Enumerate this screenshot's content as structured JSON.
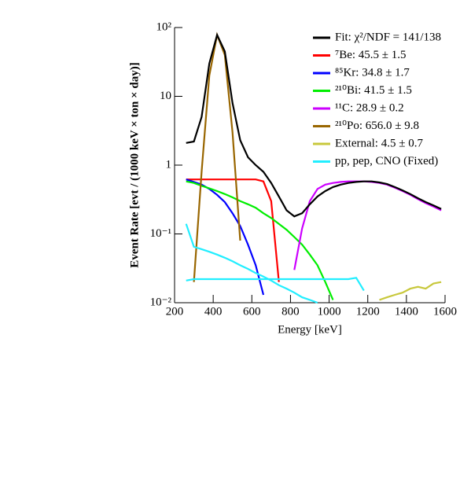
{
  "chart_data": {
    "type": "line",
    "xlabel": "Energy [keV]",
    "ylabel": "Event Rate [evt / (1000 keV × ton × day)]",
    "log_y": true,
    "legend": "top-right",
    "xlim": [
      200,
      1600
    ],
    "xticks": [
      200,
      400,
      600,
      800,
      1000,
      1200,
      1400,
      1600
    ],
    "ylim": [
      0.01,
      100
    ],
    "yticks": [
      {
        "value": 0.01,
        "label": "10⁻²"
      },
      {
        "value": 0.1,
        "label": "10⁻¹"
      },
      1,
      10,
      {
        "value": 100,
        "label": "10²"
      }
    ],
    "x": [
      260,
      300,
      340,
      380,
      420,
      460,
      500,
      540,
      580,
      620,
      660,
      700,
      740,
      780,
      820,
      860,
      900,
      940,
      980,
      1020,
      1060,
      1100,
      1140,
      1180,
      1220,
      1260,
      1300,
      1340,
      1380,
      1420,
      1460,
      1500,
      1540,
      1580
    ],
    "series": [
      {
        "name": "Fit: χ²/NDF = 141/138",
        "color": "#000000",
        "values": [
          2.1,
          2.2,
          5,
          30,
          78,
          45,
          8,
          2.3,
          1.3,
          1.0,
          0.8,
          0.55,
          0.35,
          0.22,
          0.18,
          0.2,
          0.27,
          0.35,
          0.42,
          0.48,
          0.52,
          0.55,
          0.57,
          0.58,
          0.58,
          0.56,
          0.53,
          0.48,
          0.43,
          0.38,
          0.33,
          0.29,
          0.26,
          0.23
        ]
      },
      {
        "name": "⁷Be: 45.5 ± 1.5",
        "color": "#ff0000",
        "values": [
          0.62,
          0.62,
          0.62,
          0.62,
          0.62,
          0.62,
          0.62,
          0.62,
          0.62,
          0.62,
          0.58,
          0.3,
          0.02,
          null,
          null,
          null,
          null,
          null,
          null,
          null,
          null,
          null,
          null,
          null,
          null,
          null,
          null,
          null,
          null,
          null,
          null,
          null,
          null,
          null
        ]
      },
      {
        "name": "⁸⁵Kr: 34.8 ± 1.7",
        "color": "#0000ff",
        "values": [
          0.62,
          0.57,
          0.52,
          0.45,
          0.37,
          0.29,
          0.2,
          0.13,
          0.07,
          0.035,
          0.013,
          null,
          null,
          null,
          null,
          null,
          null,
          null,
          null,
          null,
          null,
          null,
          null,
          null,
          null,
          null,
          null,
          null,
          null,
          null,
          null,
          null,
          null,
          null
        ]
      },
      {
        "name": "²¹⁰Bi: 41.5 ± 1.5",
        "color": "#00ee00",
        "values": [
          0.58,
          0.55,
          0.5,
          0.46,
          0.42,
          0.38,
          0.34,
          0.3,
          0.27,
          0.24,
          0.2,
          0.17,
          0.14,
          0.115,
          0.09,
          0.07,
          0.05,
          0.035,
          0.02,
          0.011,
          null,
          null,
          null,
          null,
          null,
          null,
          null,
          null,
          null,
          null,
          null,
          null,
          null,
          null
        ]
      },
      {
        "name": "¹¹C: 28.9 ± 0.2",
        "color": "#cc00ff",
        "values": [
          null,
          null,
          null,
          null,
          null,
          null,
          null,
          null,
          null,
          null,
          null,
          null,
          null,
          null,
          0.03,
          0.12,
          0.3,
          0.45,
          0.52,
          0.55,
          0.57,
          0.58,
          0.58,
          0.58,
          0.57,
          0.55,
          0.52,
          0.47,
          0.42,
          0.37,
          0.32,
          0.28,
          0.25,
          0.22
        ]
      },
      {
        "name": "²¹⁰Po: 656.0 ± 9.8",
        "color": "#996600",
        "values": [
          null,
          0.02,
          0.8,
          20,
          78,
          40,
          3,
          0.08,
          null,
          null,
          null,
          null,
          null,
          null,
          null,
          null,
          null,
          null,
          null,
          null,
          null,
          null,
          null,
          null,
          null,
          null,
          null,
          null,
          null,
          null,
          null,
          null,
          null,
          null
        ]
      },
      {
        "name": "External: 4.5 ± 0.7",
        "color": "#c8c83c",
        "values": [
          null,
          null,
          null,
          null,
          null,
          null,
          null,
          null,
          null,
          null,
          null,
          null,
          null,
          null,
          null,
          null,
          null,
          null,
          null,
          null,
          null,
          null,
          null,
          null,
          null,
          0.011,
          0.012,
          0.013,
          0.014,
          0.016,
          0.017,
          0.016,
          0.019,
          0.02
        ]
      },
      {
        "name": "pp, pep, CNO (Fixed)",
        "color": "#22eeff",
        "values": [
          0.14,
          0.065,
          0.06,
          0.055,
          0.05,
          0.045,
          0.04,
          0.035,
          0.031,
          0.027,
          0.024,
          0.021,
          0.018,
          0.016,
          0.014,
          0.012,
          0.011,
          0.01,
          null,
          null,
          null,
          null,
          null,
          null,
          null,
          null,
          null,
          null,
          null,
          null,
          null,
          null,
          null,
          null
        ]
      },
      {
        "color": "#22eeff",
        "values": [
          0.021,
          0.022,
          0.022,
          0.022,
          0.022,
          0.022,
          0.022,
          0.022,
          0.022,
          0.022,
          0.022,
          0.022,
          0.022,
          0.022,
          0.022,
          0.022,
          0.022,
          0.022,
          0.022,
          0.022,
          0.022,
          0.022,
          0.023,
          0.015,
          null,
          null,
          null,
          null,
          null,
          null,
          null,
          null,
          null,
          null
        ]
      }
    ]
  }
}
